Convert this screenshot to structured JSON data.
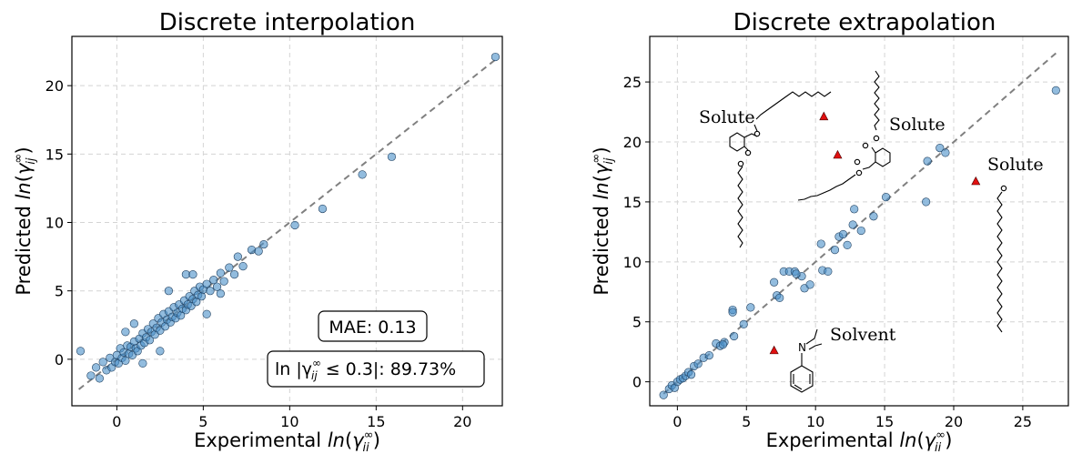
{
  "chart_data": [
    {
      "type": "scatter",
      "title": "Discrete interpolation",
      "xlabel_prefix": "Experimental ",
      "ylabel_prefix": "Predicted ",
      "xlim": [
        -2.6,
        22.3
      ],
      "ylim": [
        -3.4,
        23.6
      ],
      "xticks": [
        0,
        5,
        10,
        15,
        20
      ],
      "yticks": [
        0,
        5,
        10,
        15,
        20
      ],
      "grid": true,
      "point_color": "#4a90c8",
      "parity_line": {
        "from": -2.2,
        "to": 22.0,
        "color": "#808080"
      },
      "annotations": {
        "mae": "MAE: 0.13",
        "accuracy_prefix": "ln |γ",
        "accuracy_suffix": " ≤ 0.3|: 89.73%"
      },
      "points": [
        [
          -2.1,
          0.6
        ],
        [
          -1.5,
          -1.2
        ],
        [
          -1.2,
          -0.6
        ],
        [
          -1.0,
          -1.4
        ],
        [
          -0.8,
          -0.2
        ],
        [
          -0.6,
          -0.8
        ],
        [
          -0.4,
          0.1
        ],
        [
          -0.3,
          -0.6
        ],
        [
          -0.1,
          -0.2
        ],
        [
          0.0,
          0.3
        ],
        [
          0.1,
          -0.3
        ],
        [
          0.2,
          0.8
        ],
        [
          0.3,
          0.1
        ],
        [
          0.4,
          0.5
        ],
        [
          0.5,
          -0.1
        ],
        [
          0.6,
          1.0
        ],
        [
          0.7,
          0.4
        ],
        [
          0.8,
          0.9
        ],
        [
          0.9,
          0.3
        ],
        [
          1.0,
          1.3
        ],
        [
          1.1,
          0.8
        ],
        [
          1.2,
          0.6
        ],
        [
          1.3,
          1.5
        ],
        [
          1.4,
          1.0
        ],
        [
          1.5,
          1.9
        ],
        [
          1.6,
          1.2
        ],
        [
          1.7,
          1.6
        ],
        [
          1.8,
          2.2
        ],
        [
          1.9,
          1.4
        ],
        [
          2.0,
          2.0
        ],
        [
          2.1,
          2.6
        ],
        [
          2.2,
          1.8
        ],
        [
          2.3,
          2.3
        ],
        [
          2.4,
          3.0
        ],
        [
          2.5,
          2.1
        ],
        [
          2.6,
          2.7
        ],
        [
          2.7,
          3.3
        ],
        [
          2.8,
          2.4
        ],
        [
          2.9,
          2.9
        ],
        [
          3.0,
          3.5
        ],
        [
          3.1,
          2.7
        ],
        [
          3.2,
          3.1
        ],
        [
          3.3,
          3.8
        ],
        [
          3.4,
          3.0
        ],
        [
          3.5,
          3.4
        ],
        [
          3.6,
          4.0
        ],
        [
          3.7,
          3.2
        ],
        [
          3.8,
          3.7
        ],
        [
          3.9,
          4.3
        ],
        [
          4.0,
          3.6
        ],
        [
          4.1,
          4.0
        ],
        [
          4.2,
          4.6
        ],
        [
          4.3,
          3.9
        ],
        [
          4.4,
          4.4
        ],
        [
          4.5,
          5.0
        ],
        [
          4.6,
          4.2
        ],
        [
          4.7,
          4.7
        ],
        [
          4.8,
          5.3
        ],
        [
          4.9,
          4.6
        ],
        [
          5.0,
          5.1
        ],
        [
          5.2,
          5.5
        ],
        [
          5.4,
          5.0
        ],
        [
          5.6,
          5.8
        ],
        [
          5.8,
          5.3
        ],
        [
          6.0,
          6.3
        ],
        [
          6.2,
          5.7
        ],
        [
          6.5,
          6.7
        ],
        [
          6.8,
          6.2
        ],
        [
          7.0,
          7.5
        ],
        [
          7.3,
          6.8
        ],
        [
          7.8,
          8.0
        ],
        [
          8.2,
          7.9
        ],
        [
          8.5,
          8.4
        ],
        [
          3.0,
          5.0
        ],
        [
          4.0,
          6.2
        ],
        [
          4.4,
          6.2
        ],
        [
          1.0,
          2.6
        ],
        [
          2.5,
          0.6
        ],
        [
          5.2,
          3.3
        ],
        [
          6.0,
          4.8
        ],
        [
          0.5,
          2.0
        ],
        [
          1.5,
          -0.3
        ],
        [
          10.3,
          9.8
        ],
        [
          11.9,
          11.0
        ],
        [
          14.2,
          13.5
        ],
        [
          15.9,
          14.8
        ],
        [
          21.9,
          22.1
        ]
      ]
    },
    {
      "type": "scatter",
      "title": "Discrete extrapolation",
      "xlabel_prefix": "Experimental ",
      "ylabel_prefix": "Predicted ",
      "xlim": [
        -2.0,
        28.3
      ],
      "ylim": [
        -2.0,
        28.8
      ],
      "xticks": [
        0,
        5,
        10,
        15,
        20,
        25
      ],
      "yticks": [
        0,
        5,
        10,
        15,
        20,
        25
      ],
      "grid": true,
      "point_color": "#4a90c8",
      "highlight_color": "#e01010",
      "parity_line": {
        "from": -1.0,
        "to": 27.4,
        "color": "#808080"
      },
      "structure_labels": {
        "solute_a": "Solute",
        "solute_b": "Solute",
        "solute_c": "Solute",
        "solvent": "Solvent"
      },
      "points": [
        [
          -1.0,
          -1.1
        ],
        [
          -0.6,
          -0.6
        ],
        [
          -0.4,
          -0.3
        ],
        [
          -0.2,
          -0.5
        ],
        [
          0.0,
          0.0
        ],
        [
          0.2,
          0.2
        ],
        [
          0.4,
          0.3
        ],
        [
          0.6,
          0.5
        ],
        [
          0.8,
          0.8
        ],
        [
          1.0,
          0.6
        ],
        [
          1.2,
          1.3
        ],
        [
          1.5,
          1.5
        ],
        [
          1.9,
          2.0
        ],
        [
          2.3,
          2.2
        ],
        [
          2.8,
          3.2
        ],
        [
          3.1,
          3.0
        ],
        [
          3.4,
          3.3
        ],
        [
          4.0,
          6.0
        ],
        [
          4.0,
          5.8
        ],
        [
          4.1,
          3.8
        ],
        [
          4.8,
          4.8
        ],
        [
          5.3,
          6.2
        ],
        [
          7.0,
          8.3
        ],
        [
          7.2,
          7.2
        ],
        [
          7.4,
          7.0
        ],
        [
          7.7,
          9.2
        ],
        [
          8.1,
          9.2
        ],
        [
          8.5,
          9.2
        ],
        [
          9.0,
          8.8
        ],
        [
          9.2,
          7.8
        ],
        [
          9.6,
          8.1
        ],
        [
          10.5,
          9.3
        ],
        [
          10.9,
          9.2
        ],
        [
          10.4,
          11.5
        ],
        [
          11.4,
          11.0
        ],
        [
          11.7,
          12.1
        ],
        [
          12.0,
          12.3
        ],
        [
          12.3,
          11.4
        ],
        [
          12.7,
          13.1
        ],
        [
          12.8,
          14.4
        ],
        [
          13.3,
          12.6
        ],
        [
          14.2,
          13.8
        ],
        [
          15.1,
          15.4
        ],
        [
          18.0,
          15.0
        ],
        [
          18.1,
          18.4
        ],
        [
          19.0,
          19.5
        ],
        [
          19.4,
          19.1
        ],
        [
          27.4,
          24.3
        ],
        [
          8.6,
          9.0
        ],
        [
          3.3,
          3.1
        ]
      ],
      "highlight_points": [
        [
          10.6,
          22.1
        ],
        [
          11.6,
          18.9
        ],
        [
          21.6,
          16.7
        ],
        [
          7.0,
          2.6
        ]
      ]
    }
  ]
}
